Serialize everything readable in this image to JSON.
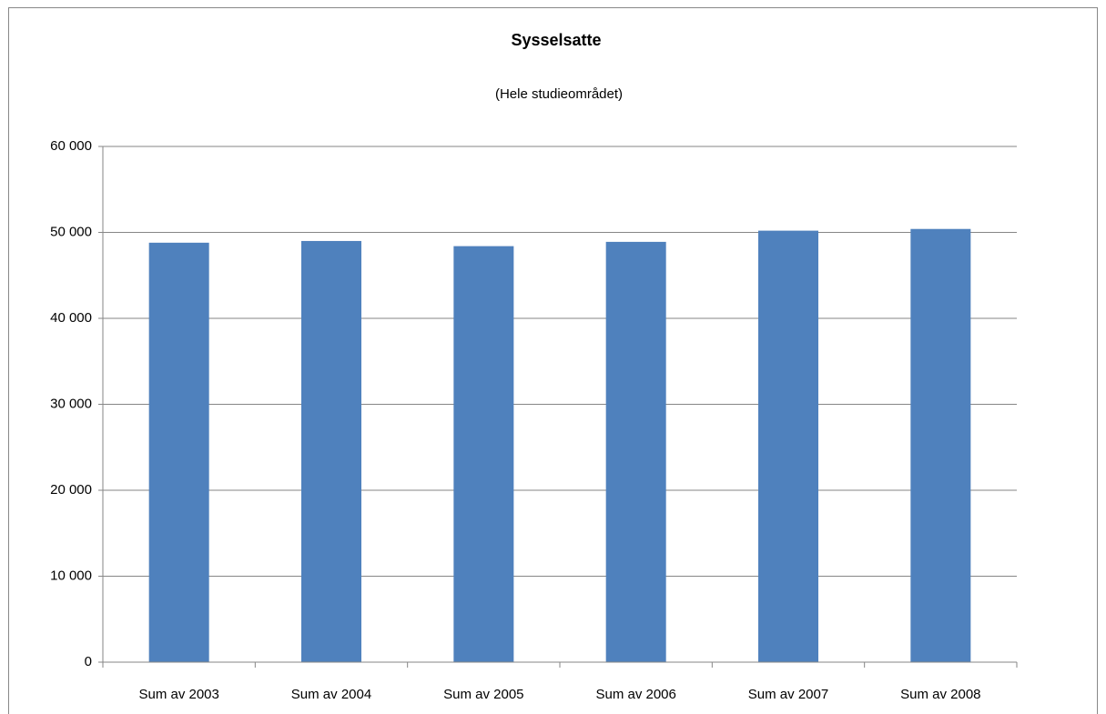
{
  "chart_data": {
    "type": "bar",
    "title": "Sysselsatte",
    "subtitle": "(Hele studieområdet)",
    "categories": [
      "Sum av 2003",
      "Sum av 2004",
      "Sum av 2005",
      "Sum av 2006",
      "Sum av 2007",
      "Sum av 2008"
    ],
    "values": [
      48800,
      49000,
      48400,
      48900,
      50200,
      50400
    ],
    "color": "#4f81bd",
    "ylim": [
      0,
      60000
    ],
    "yticks": [
      0,
      {
        "value": 10000,
        "label": "10 000"
      },
      {
        "value": 20000,
        "label": "20 000"
      },
      {
        "value": 30000,
        "label": "30 000"
      },
      {
        "value": 40000,
        "label": "40 000"
      },
      {
        "value": 50000,
        "label": "50 000"
      },
      {
        "value": 60000,
        "label": "60 000"
      }
    ],
    "grid": true
  }
}
